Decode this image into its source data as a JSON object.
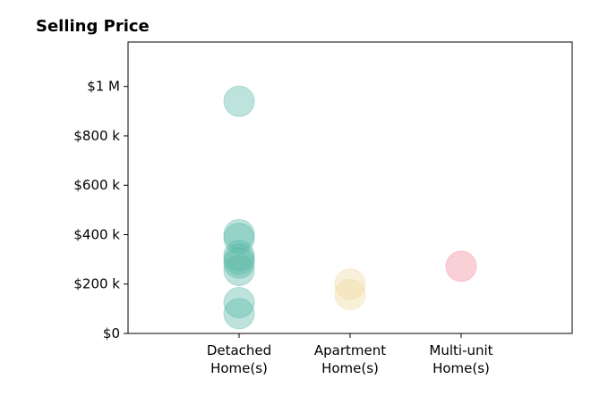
{
  "chart_data": {
    "type": "scatter",
    "title": "Selling Price",
    "xlabel": "",
    "ylabel": "",
    "categories": [
      {
        "key": "detached",
        "lines": [
          "Detached",
          "Home(s)"
        ],
        "color": "#5bb8a8"
      },
      {
        "key": "apartment",
        "lines": [
          "Apartment",
          "Home(s)"
        ],
        "color": "#f0d9a0"
      },
      {
        "key": "multiunit",
        "lines": [
          "Multi-unit",
          "Home(s)"
        ],
        "color": "#f08a96"
      }
    ],
    "series": [
      {
        "category": "detached",
        "values": [
          940000,
          400000,
          385000,
          315000,
          300000,
          285000,
          255000,
          125000,
          80000
        ]
      },
      {
        "category": "apartment",
        "values": [
          200000,
          158000
        ]
      },
      {
        "category": "multiunit",
        "values": [
          272000
        ]
      }
    ],
    "yticks": [
      0,
      200000,
      400000,
      600000,
      800000,
      1000000
    ],
    "ytick_labels": [
      "$0",
      "$200 k",
      "$400 k",
      "$600 k",
      "$800 k",
      "$1 M"
    ],
    "ylim": [
      0,
      1180000
    ],
    "xlim": [
      0,
      4
    ],
    "grid": false,
    "marker_opacity": 0.4
  }
}
